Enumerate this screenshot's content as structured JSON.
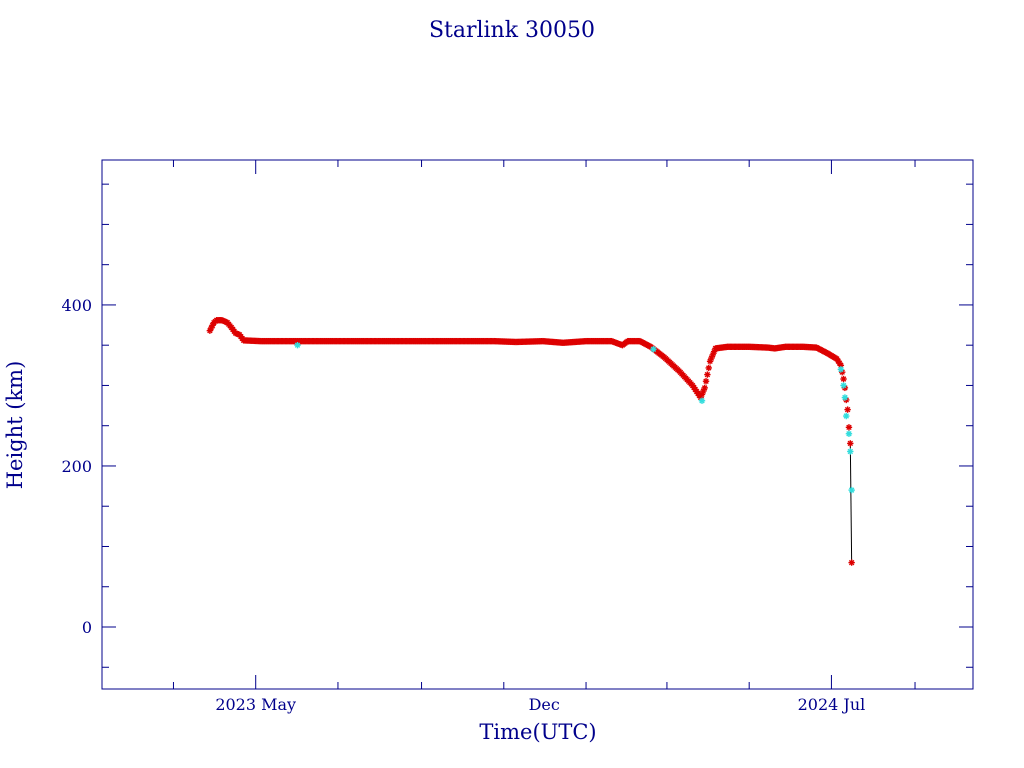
{
  "chart_data": {
    "type": "scatter",
    "title": "Starlink 30050",
    "xlabel": "Time(UTC)",
    "ylabel": "Height (km)",
    "x_axis": "date",
    "xlim": [
      "2023-01-07",
      "2024-10-14"
    ],
    "ylim": [
      -77,
      580
    ],
    "x_tick_labels": [
      {
        "date": "2023-05-01",
        "label": "2023 May"
      },
      {
        "date": "2023-12-01",
        "label": "Dec"
      },
      {
        "date": "2024-07-01",
        "label": "2024 Jul"
      }
    ],
    "y_ticks": [
      0,
      200,
      400
    ],
    "grid": false,
    "colors": {
      "axes": "#00008b",
      "series_main": "#dd0000",
      "series_alt": "#33dddd",
      "connector": "#000000"
    },
    "series": [
      {
        "values": [
          [
            "2023-03-28",
            368
          ],
          [
            "2023-03-31",
            378
          ],
          [
            "2023-04-02",
            381
          ],
          [
            "2023-04-06",
            381
          ],
          [
            "2023-04-10",
            378
          ],
          [
            "2023-04-13",
            372
          ],
          [
            "2023-04-16",
            365
          ],
          [
            "2023-04-19",
            363
          ],
          [
            "2023-04-22",
            356
          ],
          [
            "2023-05-05",
            355
          ],
          [
            "2023-06-05",
            355
          ],
          [
            "2023-07-10",
            355
          ],
          [
            "2023-08-15",
            355
          ],
          [
            "2023-09-20",
            355
          ],
          [
            "2023-10-25",
            355
          ],
          [
            "2023-11-10",
            354
          ],
          [
            "2023-11-30",
            355
          ],
          [
            "2023-12-15",
            353
          ],
          [
            "2024-01-01",
            355
          ],
          [
            "2024-01-20",
            355
          ],
          [
            "2024-01-28",
            350
          ],
          [
            "2024-02-01",
            355
          ],
          [
            "2024-02-10",
            355
          ],
          [
            "2024-02-18",
            348
          ],
          [
            "2024-02-28",
            335
          ],
          [
            "2024-03-10",
            318
          ],
          [
            "2024-03-20",
            300
          ],
          [
            "2024-03-26",
            285
          ],
          [
            "2024-03-29",
            297
          ],
          [
            "2024-04-02",
            330
          ],
          [
            "2024-04-06",
            346
          ],
          [
            "2024-04-15",
            348
          ],
          [
            "2024-05-01",
            348
          ],
          [
            "2024-05-15",
            347
          ],
          [
            "2024-05-20",
            346
          ],
          [
            "2024-05-28",
            348
          ],
          [
            "2024-06-10",
            348
          ],
          [
            "2024-06-20",
            347
          ],
          [
            "2024-06-28",
            340
          ],
          [
            "2024-07-05",
            333
          ],
          [
            "2024-07-08",
            325
          ],
          [
            "2024-07-10",
            308
          ],
          [
            "2024-07-11",
            297
          ],
          [
            "2024-07-12",
            282
          ],
          [
            "2024-07-13",
            270
          ],
          [
            "2024-07-14",
            248
          ],
          [
            "2024-07-15",
            228
          ],
          [
            "2024-07-16",
            80
          ]
        ]
      },
      {
        "values": [
          [
            "2023-06-01",
            350
          ],
          [
            "2024-02-20",
            345
          ],
          [
            "2024-03-27",
            281
          ],
          [
            "2024-07-08",
            320
          ],
          [
            "2024-07-10",
            300
          ],
          [
            "2024-07-11",
            285
          ],
          [
            "2024-07-12",
            262
          ],
          [
            "2024-07-14",
            240
          ],
          [
            "2024-07-15",
            218
          ],
          [
            "2024-07-16",
            170
          ]
        ]
      }
    ]
  }
}
